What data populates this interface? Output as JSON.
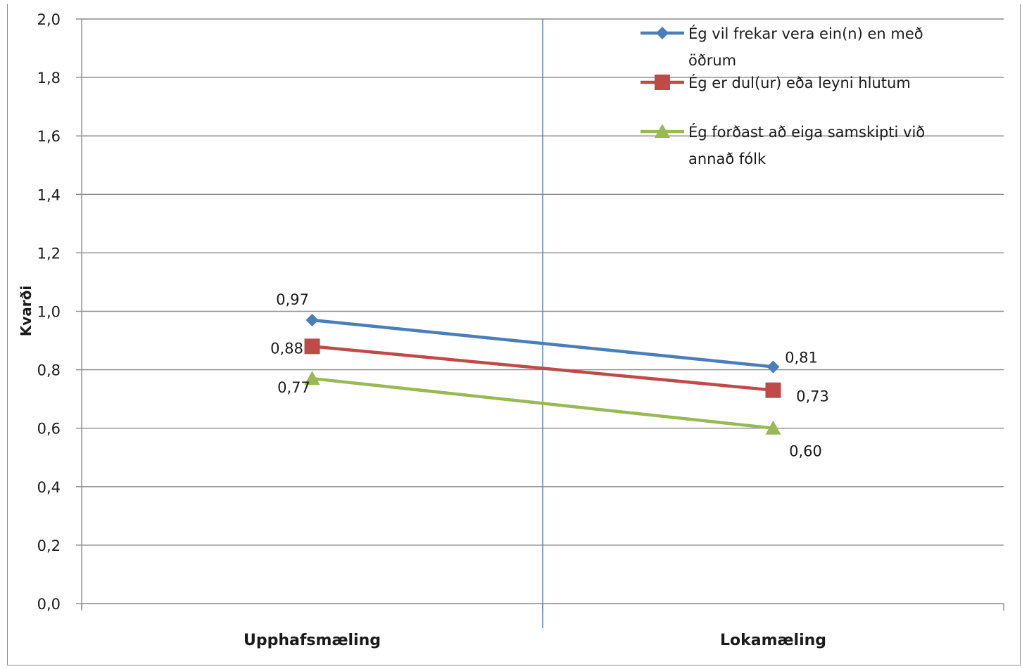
{
  "chart_data": {
    "type": "line",
    "categories": [
      "Upphafsmæling",
      "Lokamæling"
    ],
    "ylabel": "Kvarði",
    "ylim": [
      0,
      2.0
    ],
    "yticks": [
      "0,0",
      "0,2",
      "0,4",
      "0,6",
      "0,8",
      "1,0",
      "1,2",
      "1,4",
      "1,6",
      "1,8",
      "2,0"
    ],
    "grid": true,
    "legend_position": "top-right",
    "series": [
      {
        "name_lines": [
          "Ég vil frekar vera ein(n) en með",
          "öðrum"
        ],
        "values": [
          0.97,
          0.81
        ],
        "labels": [
          "0,97",
          "0,81"
        ],
        "color": "#4a7ebb",
        "marker": "diamond"
      },
      {
        "name_lines": [
          "Ég er dul(ur) eða leyni hlutum"
        ],
        "values": [
          0.88,
          0.73
        ],
        "labels": [
          "0,88",
          "0,73"
        ],
        "color": "#be4b48",
        "marker": "square"
      },
      {
        "name_lines": [
          "Ég forðast að eiga samskipti  við",
          "annað fólk"
        ],
        "values": [
          0.77,
          0.6
        ],
        "labels": [
          "0,77",
          "0,60"
        ],
        "color": "#98b954",
        "marker": "triangle"
      }
    ]
  }
}
